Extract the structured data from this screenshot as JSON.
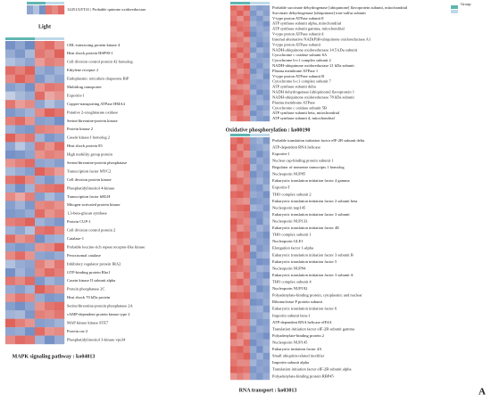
{
  "chart_data": [
    {
      "type": "heatmap",
      "title": "Light",
      "legend_title": "Group",
      "rows": [
        "12451/LET41 | Probable quinone oxidoreductase"
      ],
      "values": [
        [
          -1.2,
          -0.8,
          -1.5,
          1.3,
          1.1,
          1.4
        ]
      ],
      "colors": {
        "low": "#4a6fb5",
        "mid": "#f7f7f7",
        "high": "#d73027"
      },
      "vlim": [
        -2,
        2
      ]
    },
    {
      "type": "heatmap",
      "title": "MAPK signaling pathway : ko04013",
      "rows": [
        "CBL-interacting protein kinase 4",
        "Heat shock protein HSP90-1",
        "Cell division control protein 42 homolog",
        "Ethylene receptor 2",
        "Endoplasmic reticulum chaperone BiP",
        "Multidrug transporter",
        "Exportin-1",
        "Copper-transporting ATPase HMA4",
        "Putative 2-oxoglutarate oxidase",
        "Serine/threonine-protein kinase",
        "Protein kinase 2",
        "Casein kinase I homolog 2",
        "Heat shock protein 83",
        "High mobility group protein",
        "Serine/threonine-protein phosphatase",
        "Transcription factor MYC2",
        "Cell division protein kinase",
        "Phosphatidylinositol 4-kinase",
        "Transcription factor bHLH",
        "Mitogen-activated protein kinase",
        "1,3-beta-glucan synthase",
        "Protein CUP-1",
        "Cell division control protein 2",
        "Catalase-1",
        "Probable leucine-rich repeat receptor-like kinase",
        "Peroxisomal catalase",
        "Inhibitory regulator protein IRA2",
        "GTP-binding protein Rho1",
        "Casein kinase II subunit alpha",
        "Protein phosphatase 2C",
        "Heat shock 70 kDa protein",
        "Serine/threonine-protein phosphatase 2A",
        "cAMP-dependent protein kinase type 2",
        "MAP kinase kinase STE7",
        "Protein ras-2",
        "Phosphatidylinositol 3-kinase vps34"
      ],
      "values": [
        [
          -1.5,
          -1.2,
          -1.6,
          1.2,
          1.4,
          1.0
        ],
        [
          -1.1,
          -1.4,
          -0.9,
          1.3,
          1.1,
          1.5
        ],
        [
          -0.8,
          -1.0,
          -1.2,
          0.9,
          1.2,
          1.1
        ],
        [
          1.4,
          1.2,
          1.5,
          -1.1,
          -1.3,
          -1.0
        ],
        [
          1.1,
          1.5,
          1.2,
          -1.4,
          -1.0,
          -1.2
        ],
        [
          -1.3,
          -1.1,
          -1.5,
          1.0,
          1.3,
          1.2
        ],
        [
          -0.6,
          -0.9,
          -1.1,
          1.4,
          0.8,
          1.0
        ],
        [
          1.3,
          0.9,
          1.1,
          -1.2,
          -0.8,
          -1.1
        ],
        [
          -1.4,
          -1.2,
          -1.0,
          1.1,
          1.5,
          1.3
        ],
        [
          1.2,
          1.4,
          1.0,
          -1.3,
          -1.2,
          -1.5
        ],
        [
          -1.0,
          -1.3,
          -1.4,
          1.2,
          1.1,
          1.0
        ],
        [
          1.5,
          1.1,
          1.3,
          -1.0,
          -1.4,
          -1.2
        ],
        [
          -1.2,
          -0.7,
          -1.1,
          1.3,
          1.0,
          1.4
        ],
        [
          -1.5,
          -1.4,
          -1.2,
          1.0,
          1.2,
          1.1
        ],
        [
          1.0,
          1.2,
          1.4,
          -1.2,
          -1.1,
          -1.3
        ],
        [
          -0.9,
          -1.1,
          -1.3,
          1.5,
          1.2,
          0.9
        ],
        [
          1.3,
          1.5,
          1.1,
          -1.1,
          -1.4,
          -1.0
        ],
        [
          -1.1,
          -1.5,
          -1.0,
          1.2,
          1.3,
          1.4
        ],
        [
          1.1,
          0.8,
          1.2,
          -1.3,
          -0.9,
          -1.2
        ],
        [
          -1.3,
          -1.0,
          -1.4,
          1.1,
          1.2,
          1.0
        ],
        [
          -1.4,
          -1.3,
          -1.1,
          1.4,
          1.0,
          1.2
        ],
        [
          1.2,
          1.3,
          1.5,
          -1.0,
          -1.2,
          -1.4
        ],
        [
          -1.0,
          -1.2,
          -0.8,
          1.3,
          1.4,
          1.1
        ],
        [
          1.4,
          1.0,
          1.2,
          -1.5,
          -1.1,
          -1.0
        ],
        [
          -1.2,
          -1.4,
          -1.3,
          1.0,
          1.1,
          1.5
        ],
        [
          1.1,
          1.4,
          1.0,
          -1.2,
          -1.3,
          -1.1
        ],
        [
          -0.8,
          -1.1,
          -1.2,
          1.2,
          0.9,
          1.3
        ],
        [
          -1.5,
          -1.0,
          -1.3,
          1.1,
          1.4,
          1.2
        ],
        [
          1.3,
          1.1,
          1.4,
          -1.4,
          -1.0,
          -1.2
        ],
        [
          -1.1,
          -1.3,
          -1.0,
          1.5,
          1.2,
          1.0
        ],
        [
          1.0,
          1.3,
          1.1,
          -1.1,
          -1.4,
          -1.3
        ],
        [
          -1.3,
          -1.5,
          -1.2,
          1.0,
          1.3,
          1.4
        ],
        [
          -1.0,
          -0.9,
          -1.4,
          1.2,
          1.1,
          1.3
        ],
        [
          1.5,
          1.2,
          1.0,
          -1.3,
          -1.2,
          -1.0
        ],
        [
          -1.2,
          -1.1,
          -1.5,
          1.4,
          1.0,
          1.1
        ],
        [
          1.1,
          1.4,
          1.3,
          -1.0,
          -1.5,
          -1.1
        ]
      ],
      "colors": {
        "low": "#4a6fb5",
        "mid": "#f7f7f7",
        "high": "#d73027"
      },
      "vlim": [
        -2,
        2
      ]
    },
    {
      "type": "heatmap",
      "title": "Oxidative phosphorylation : ko00190",
      "rows": [
        "Probable succinate dehydrogenase [ubiquinone] flavoprotein subunit, mitochondrial",
        "Succinate dehydrogenase [ubiquinone] iron-sulfur subunit",
        "V-type proton ATPase subunit E",
        "ATP synthase subunit alpha, mitochondrial",
        "ATP synthase subunit gamma, mitochondrial",
        "V-type proton ATPase subunit d",
        "Internal alternative NAD(P)H-ubiquinone oxidoreductase A1",
        "V-type proton ATPase subunit",
        "NADH-ubiquinone oxidoreductase 14.5 kDa subunit",
        "Cytochrome c oxidase subunit 6A",
        "Cytochrome b-c1 complex subunit 2",
        "NADH-ubiquinone oxidoreductase 21 kDa subunit",
        "Plasma membrane ATPase 1",
        "V-type proton ATPase subunit B",
        "Cytochrome b-c1 complex subunit 7",
        "ATP synthase subunit delta",
        "NADH dehydrogenase [ubiquinone] flavoprotein 1",
        "NADH-ubiquinone oxidoreductase 78 kDa subunit",
        "Plasma membrane ATPase",
        "Cytochrome c oxidase subunit 5B",
        "ATP synthase subunit beta, mitochondrial",
        "ATP synthase subunit d, mitochondrial"
      ],
      "values": [
        [
          1.4,
          1.2,
          1.5,
          -1.1,
          -1.3,
          -1.2
        ],
        [
          1.2,
          1.5,
          1.1,
          -1.4,
          -1.0,
          -1.3
        ],
        [
          1.3,
          1.0,
          1.4,
          -1.2,
          -1.4,
          -1.0
        ],
        [
          1.5,
          1.3,
          1.2,
          -1.0,
          -1.2,
          -1.5
        ],
        [
          1.1,
          1.4,
          1.3,
          -1.3,
          -1.1,
          -1.2
        ],
        [
          1.2,
          1.1,
          1.5,
          -1.5,
          -1.2,
          -1.0
        ],
        [
          1.4,
          1.3,
          1.0,
          -1.2,
          -1.3,
          -1.1
        ],
        [
          1.0,
          1.2,
          1.3,
          -1.1,
          -1.5,
          -1.3
        ],
        [
          1.3,
          1.5,
          1.2,
          -1.4,
          -1.0,
          -1.2
        ],
        [
          1.5,
          1.1,
          1.4,
          -1.0,
          -1.3,
          -1.4
        ],
        [
          1.2,
          1.4,
          1.1,
          -1.3,
          -1.2,
          -1.1
        ],
        [
          1.1,
          1.3,
          1.5,
          -1.2,
          -1.4,
          -1.0
        ],
        [
          1.4,
          1.0,
          1.2,
          -1.5,
          -1.1,
          -1.3
        ],
        [
          1.3,
          1.2,
          1.4,
          -1.1,
          -1.0,
          -1.5
        ],
        [
          1.0,
          1.5,
          1.3,
          -1.2,
          -1.3,
          -1.2
        ],
        [
          1.2,
          1.1,
          1.0,
          -1.4,
          -1.2,
          -1.1
        ],
        [
          1.5,
          1.4,
          1.2,
          -1.0,
          -1.5,
          -1.3
        ],
        [
          1.1,
          1.2,
          1.4,
          -1.3,
          -1.1,
          -1.4
        ],
        [
          1.3,
          1.1,
          1.5,
          -1.2,
          -1.0,
          -1.1
        ],
        [
          1.4,
          1.5,
          1.1,
          -1.1,
          -1.4,
          -1.2
        ],
        [
          1.2,
          1.3,
          1.0,
          -1.5,
          -1.2,
          -1.0
        ],
        [
          1.0,
          1.4,
          1.3,
          -1.0,
          -1.3,
          -1.4
        ]
      ],
      "colors": {
        "low": "#4a6fb5",
        "mid": "#f7f7f7",
        "high": "#d73027"
      },
      "vlim": [
        -2,
        2
      ]
    },
    {
      "type": "heatmap",
      "title": "RNA transport : ko03013",
      "rows": [
        "Probable translation initiation factor eIF-2B subunit delta",
        "ATP-dependent RNA helicase",
        "Exportin-1",
        "Nuclear cap-binding protein subunit 1",
        "Regulator of nonsense transcripts 1 homolog",
        "Nucleoporin NUP85",
        "Eukaryotic translation initiation factor 4 gamma",
        "Exportin-T",
        "THO complex subunit 2",
        "Eukaryotic translation initiation factor 2 subunit beta",
        "Nucleoporin nup145",
        "Eukaryotic translation initiation factor 3 subunit",
        "Nucleoporin NUP133",
        "Eukaryotic translation initiation factor 4E",
        "THO complex subunit 1",
        "Nucleoporin GLE1",
        "Elongation factor 1-alpha",
        "Eukaryotic translation initiation factor 3 subunit B",
        "Eukaryotic translation initiation factor 5",
        "Nucleoporin NUP84",
        "Eukaryotic translation initiation factor 3 subunit A",
        "THO complex subunit 4",
        "Nucleoporin NUP192",
        "Polyadenylate-binding protein, cytoplasmic and nuclear",
        "Ribonuclease P protein subunit",
        "Eukaryotic translation initiation factor 6",
        "Importin subunit beta-1",
        "ATP-dependent RNA helicase eIF4A",
        "Translation initiation factor eIF-2B subunit gamma",
        "Polyadenylate-binding protein 2",
        "Nucleoporin NUP145",
        "Eukaryotic initiation factor 4A",
        "Small ubiquitin-related modifier",
        "Importin subunit alpha",
        "Translation initiation factor eIF-2B subunit alpha",
        "Polyadenylate-binding protein RBP45"
      ],
      "values": [
        [
          1.3,
          1.5,
          1.2,
          -1.2,
          -1.0,
          -1.4
        ],
        [
          1.5,
          1.1,
          1.4,
          -1.3,
          -1.2,
          -1.0
        ],
        [
          1.2,
          1.4,
          1.0,
          -1.1,
          -1.5,
          -1.2
        ],
        [
          1.4,
          1.2,
          1.3,
          -1.4,
          -1.1,
          -1.3
        ],
        [
          1.1,
          1.3,
          1.5,
          -1.0,
          -1.3,
          -1.1
        ],
        [
          1.3,
          1.0,
          1.2,
          -1.5,
          -1.2,
          -1.4
        ],
        [
          1.5,
          1.4,
          1.1,
          -1.2,
          -1.0,
          -1.3
        ],
        [
          1.0,
          1.2,
          1.4,
          -1.3,
          -1.4,
          -1.0
        ],
        [
          1.4,
          1.5,
          1.3,
          -1.1,
          -1.2,
          -1.5
        ],
        [
          1.2,
          1.1,
          1.0,
          -1.4,
          -1.3,
          -1.2
        ],
        [
          1.3,
          1.4,
          1.5,
          -1.0,
          -1.1,
          -1.4
        ],
        [
          1.1,
          1.2,
          1.3,
          -1.5,
          -1.4,
          -1.1
        ],
        [
          1.5,
          1.3,
          1.1,
          -1.2,
          -1.5,
          -1.0
        ],
        [
          1.4,
          1.0,
          1.2,
          -1.3,
          -1.0,
          -1.2
        ],
        [
          1.2,
          1.5,
          1.4,
          -1.1,
          -1.3,
          -1.5
        ],
        [
          1.0,
          1.3,
          1.1,
          -1.4,
          -1.2,
          -1.3
        ],
        [
          1.3,
          1.1,
          1.5,
          -1.0,
          -1.4,
          -1.2
        ],
        [
          1.5,
          1.2,
          1.3,
          -1.5,
          -1.1,
          -1.0
        ],
        [
          1.1,
          1.4,
          1.0,
          -1.2,
          -1.5,
          -1.4
        ],
        [
          1.4,
          1.3,
          1.2,
          -1.3,
          -1.0,
          -1.1
        ],
        [
          1.2,
          1.0,
          1.4,
          -1.1,
          -1.3,
          -1.5
        ],
        [
          1.3,
          1.5,
          1.1,
          -1.4,
          -1.2,
          -1.0
        ],
        [
          1.0,
          1.1,
          1.3,
          -1.0,
          -1.5,
          -1.3
        ],
        [
          1.5,
          1.4,
          1.5,
          -1.2,
          -1.1,
          -1.2
        ],
        [
          1.1,
          1.2,
          1.0,
          -1.5,
          -1.4,
          -1.1
        ],
        [
          1.4,
          1.3,
          1.2,
          -1.1,
          -1.0,
          -1.4
        ],
        [
          1.2,
          1.5,
          1.4,
          -1.3,
          -1.2,
          -1.0
        ],
        [
          1.3,
          1.1,
          1.1,
          -1.0,
          -1.4,
          -1.3
        ],
        [
          1.0,
          1.4,
          1.3,
          -1.4,
          -1.1,
          -1.2
        ],
        [
          1.5,
          1.2,
          1.0,
          -1.2,
          -1.3,
          -1.5
        ],
        [
          1.1,
          1.0,
          1.4,
          -1.5,
          -1.2,
          -1.1
        ],
        [
          1.4,
          1.5,
          1.2,
          -1.1,
          -1.5,
          -1.0
        ],
        [
          1.2,
          1.3,
          1.5,
          -1.3,
          -1.0,
          -1.4
        ],
        [
          1.3,
          1.1,
          1.1,
          -1.0,
          -1.3,
          -1.2
        ],
        [
          1.5,
          1.4,
          1.3,
          -1.4,
          -1.2,
          -1.3
        ],
        [
          1.0,
          1.2,
          1.0,
          -1.2,
          -1.4,
          -1.1
        ]
      ],
      "colors": {
        "low": "#4a6fb5",
        "mid": "#f7f7f7",
        "high": "#d73027"
      },
      "vlim": [
        -2,
        2
      ]
    }
  ],
  "panel_label": "A"
}
